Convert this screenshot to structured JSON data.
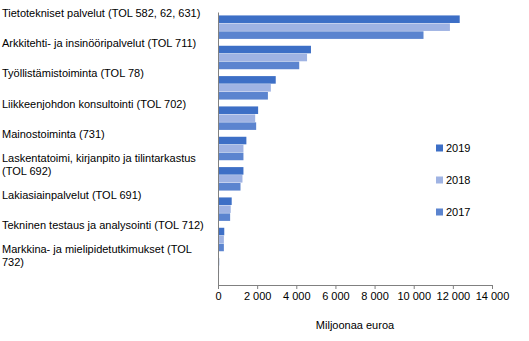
{
  "chart_data": {
    "type": "bar",
    "orientation": "horizontal",
    "categories": [
      "Tietotekniset palvelut (TOL 582, 62, 631)",
      "Arkkitehti- ja insinööripalvelut (TOL 711)",
      "Työllistämistoiminta (TOL 78)",
      "Liikkeenjohdon konsultointi (TOL 702)",
      "Mainostoiminta (731)",
      "Laskentatoimi, kirjanpito ja tilintarkastus (TOL 692)",
      "Lakiasiainpalvelut (TOL 691)",
      "Tekninen testaus ja analysointi (TOL 712)",
      "Markkina- ja mielipidetutkimukset (TOL 732)"
    ],
    "series": [
      {
        "name": "2019",
        "color": "#3d6fc6",
        "values": [
          12350,
          4750,
          2950,
          2050,
          1450,
          1300,
          700,
          320,
          60
        ]
      },
      {
        "name": "2018",
        "color": "#9fb3e3",
        "values": [
          11850,
          4550,
          2700,
          1900,
          1300,
          1250,
          650,
          300,
          55
        ]
      },
      {
        "name": "2017",
        "color": "#5b84cf",
        "values": [
          10500,
          4150,
          2550,
          1950,
          1300,
          1150,
          620,
          300,
          50
        ]
      }
    ],
    "xlabel": "Miljoonaa euroa",
    "xlim": [
      0,
      14000
    ],
    "xticks": [
      0,
      {
        "value": 2000,
        "label": "2 000"
      },
      {
        "value": 4000,
        "label": "4 000"
      },
      {
        "value": 6000,
        "label": "6 000"
      },
      {
        "value": 8000,
        "label": "8 000"
      },
      {
        "value": 10000,
        "label": "10 000"
      },
      {
        "value": 12000,
        "label": "12 000"
      },
      {
        "value": 14000,
        "label": "14 000"
      }
    ],
    "grid": false,
    "legend": "right"
  }
}
